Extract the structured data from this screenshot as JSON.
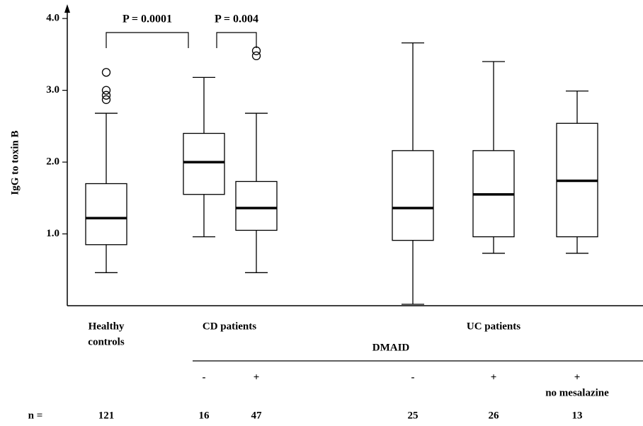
{
  "chart_data": {
    "type": "box",
    "y_label": "IgG to toxin B",
    "ylim": [
      0,
      4.1
    ],
    "yticks": [
      {
        "value": 1,
        "label": "1.0"
      },
      {
        "value": 2,
        "label": "2.0"
      },
      {
        "value": 3,
        "label": "3.0"
      },
      {
        "value": 4,
        "label": "4.0"
      }
    ],
    "categories": [
      null,
      "-",
      "+",
      "-",
      "+",
      "+"
    ],
    "category_note": "no mesalazine",
    "groups": [
      {
        "label": [
          "Healthy",
          "controls"
        ]
      },
      {
        "label": [
          "CD patients"
        ]
      },
      {
        "label": [
          "UC patients"
        ]
      }
    ],
    "subgroup_label": "DMAID",
    "n_label": "n =",
    "n": [
      121,
      16,
      47,
      25,
      26,
      13
    ],
    "boxes": [
      {
        "whisker_high": 2.68,
        "q3": 1.7,
        "median": 1.22,
        "q1": 0.85,
        "whisker_low": 0.46,
        "outliers": [
          3.25,
          3.0,
          2.93,
          2.87
        ]
      },
      {
        "whisker_high": 3.18,
        "q3": 2.4,
        "median": 2.0,
        "q1": 1.55,
        "whisker_low": 0.96,
        "outliers": []
      },
      {
        "whisker_high": 2.68,
        "q3": 1.73,
        "median": 1.36,
        "q1": 1.05,
        "whisker_low": 0.46,
        "outliers": [
          3.55,
          3.48
        ]
      },
      {
        "whisker_high": 3.66,
        "q3": 2.16,
        "median": 1.36,
        "q1": 0.91,
        "whisker_low": 0.02,
        "outliers": []
      },
      {
        "whisker_high": 3.4,
        "q3": 2.16,
        "median": 1.55,
        "q1": 0.96,
        "whisker_low": 0.73,
        "outliers": []
      },
      {
        "whisker_high": 2.99,
        "q3": 2.54,
        "median": 1.74,
        "q1": 0.96,
        "whisker_low": 0.73,
        "outliers": []
      }
    ],
    "annotations": [
      {
        "text": "P = 0.0001",
        "from": 0,
        "to": 1
      },
      {
        "text": "P = 0.004",
        "from": 1,
        "to": 2
      }
    ]
  }
}
